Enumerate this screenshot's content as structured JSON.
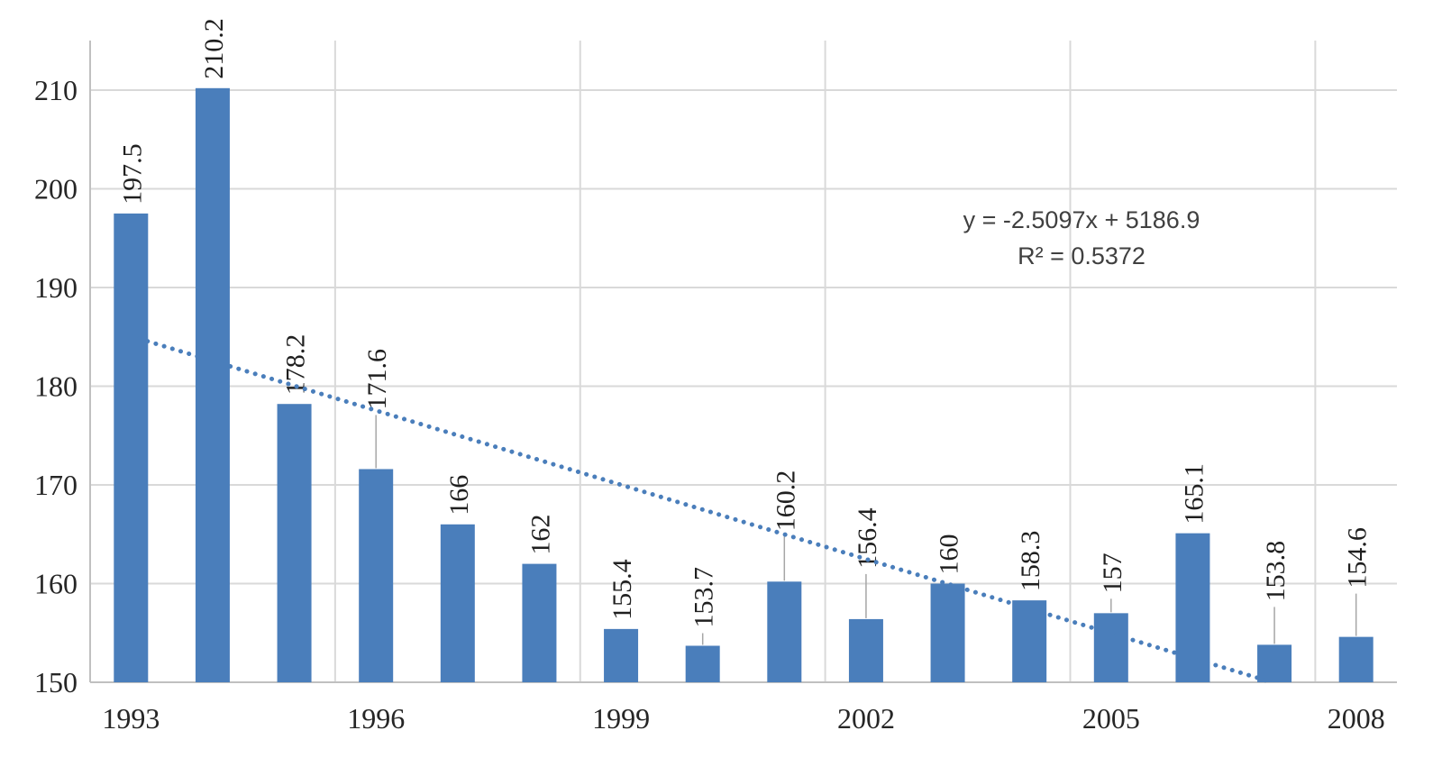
{
  "chart_data": {
    "type": "bar",
    "title": "",
    "xlabel": "",
    "ylabel": "",
    "categories": [
      1993,
      1994,
      1995,
      1996,
      1997,
      1998,
      1999,
      2000,
      2001,
      2002,
      2003,
      2004,
      2005,
      2006,
      2007,
      2008
    ],
    "values": [
      197.5,
      210.2,
      178.2,
      171.6,
      166,
      162,
      155.4,
      153.7,
      160.2,
      156.4,
      160,
      158.3,
      157,
      165.1,
      153.8,
      154.6
    ],
    "labels": [
      "197.5",
      "210.2",
      "178.2",
      "171.6",
      "166",
      "162",
      "155.4",
      "153.7",
      "160.2",
      "156.4",
      "160",
      "158.3",
      "157",
      "165.1",
      "153.8",
      "154.6"
    ],
    "ylim": [
      150,
      210
    ],
    "y_ticks": [
      150,
      160,
      170,
      180,
      190,
      200,
      210
    ],
    "x_tick_labels": [
      "1993",
      "1996",
      "1999",
      "2002",
      "2005",
      "2008"
    ],
    "x_tick_major_unit": 3,
    "grid": "both",
    "legend": "none",
    "bar_color": "#4a7ebb",
    "label_rotation": -90,
    "label_leaders": [
      0,
      0,
      0,
      60,
      0,
      0,
      0,
      14,
      50,
      50,
      0,
      0,
      16,
      0,
      42,
      48
    ],
    "trendline": {
      "type": "linear",
      "style": "dotted",
      "slope": -2.5097,
      "intercept": 5186.9,
      "equation": "y = -2.5097x + 5186.9",
      "r2_label": "R² = 0.5372",
      "color": "#4a7ebb"
    }
  },
  "colors": {
    "background": "#ffffff",
    "gridline": "#d9d9d9",
    "axis_line": "#c0c0c0",
    "tick_text": "#262626",
    "label_text": "#1f1f1f",
    "leader_line": "#a6a6a6",
    "equation_text": "#404040"
  }
}
